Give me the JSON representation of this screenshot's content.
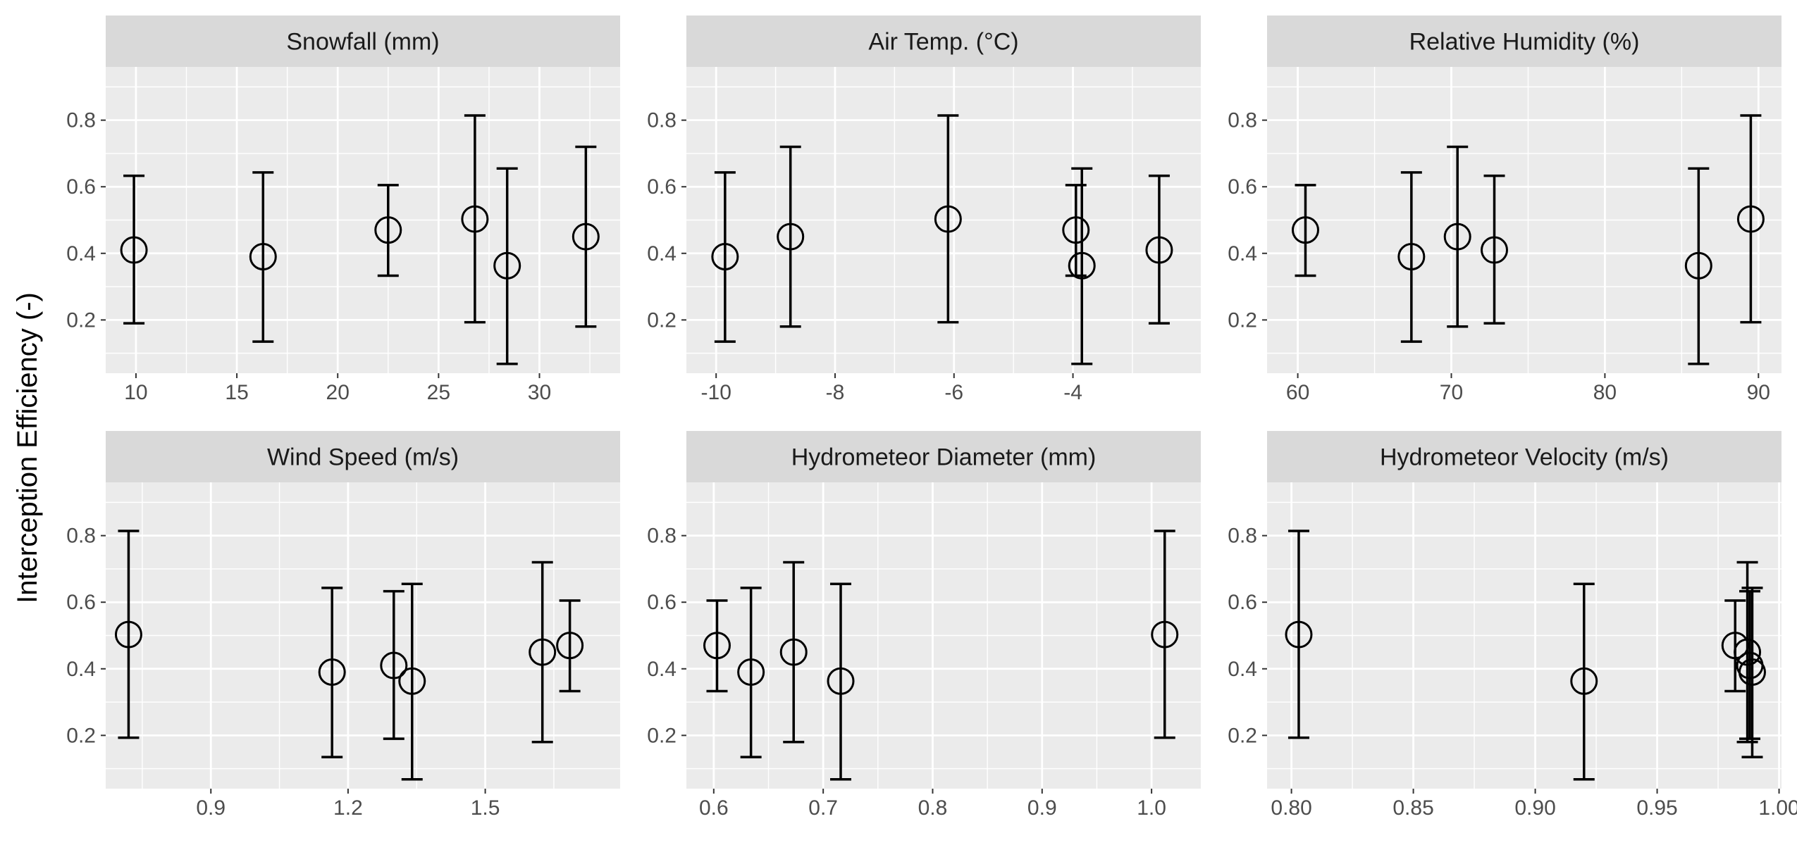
{
  "figure": {
    "ylabel": "Interception Efficiency (-)"
  },
  "colors": {
    "panel_bg": "#EBEBEB",
    "strip_bg": "#D9D9D9",
    "grid": "#FFFFFF",
    "marks": "#000000",
    "tick_text": "#4D4D4D"
  },
  "chart_data": [
    {
      "type": "scatter",
      "title": "Snowfall (mm)",
      "xlabel": "",
      "ylabel": "Interception Efficiency (-)",
      "xlim": [
        8.5,
        34.0
      ],
      "ylim": [
        0.04,
        0.96
      ],
      "xticks": [
        10,
        15,
        20,
        25,
        30
      ],
      "xtick_labels": [
        "10",
        "15",
        "20",
        "25",
        "30"
      ],
      "yticks": [
        0.2,
        0.4,
        0.6,
        0.8
      ],
      "ytick_labels": [
        "0.2",
        "0.4",
        "0.6",
        "0.8"
      ],
      "points": [
        {
          "x": 9.9,
          "y": 0.41,
          "ymin": 0.19,
          "ymax": 0.633
        },
        {
          "x": 16.3,
          "y": 0.39,
          "ymin": 0.135,
          "ymax": 0.643
        },
        {
          "x": 22.5,
          "y": 0.47,
          "ymin": 0.333,
          "ymax": 0.605
        },
        {
          "x": 26.8,
          "y": 0.503,
          "ymin": 0.193,
          "ymax": 0.814
        },
        {
          "x": 28.4,
          "y": 0.363,
          "ymin": 0.068,
          "ymax": 0.655
        },
        {
          "x": 32.3,
          "y": 0.45,
          "ymin": 0.18,
          "ymax": 0.72
        }
      ],
      "grid": true
    },
    {
      "type": "scatter",
      "title": "Air Temp. (°C)",
      "xlabel": "",
      "ylabel": "Interception Efficiency (-)",
      "xlim": [
        -10.5,
        -1.85
      ],
      "ylim": [
        0.04,
        0.96
      ],
      "xticks": [
        -10,
        -8,
        -6,
        -4
      ],
      "xtick_labels": [
        "-10",
        "-8",
        "-6",
        "-4"
      ],
      "yticks": [
        0.2,
        0.4,
        0.6,
        0.8
      ],
      "ytick_labels": [
        "0.2",
        "0.4",
        "0.6",
        "0.8"
      ],
      "points": [
        {
          "x": -9.85,
          "y": 0.39,
          "ymin": 0.135,
          "ymax": 0.643
        },
        {
          "x": -8.75,
          "y": 0.45,
          "ymin": 0.18,
          "ymax": 0.72
        },
        {
          "x": -6.1,
          "y": 0.503,
          "ymin": 0.193,
          "ymax": 0.814
        },
        {
          "x": -3.95,
          "y": 0.47,
          "ymin": 0.333,
          "ymax": 0.605
        },
        {
          "x": -3.85,
          "y": 0.363,
          "ymin": 0.068,
          "ymax": 0.655
        },
        {
          "x": -2.55,
          "y": 0.41,
          "ymin": 0.19,
          "ymax": 0.633
        }
      ],
      "grid": true
    },
    {
      "type": "scatter",
      "title": "Relative Humidity (%)",
      "xlabel": "",
      "ylabel": "Interception Efficiency (-)",
      "xlim": [
        58.0,
        91.5
      ],
      "ylim": [
        0.04,
        0.96
      ],
      "xticks": [
        60,
        70,
        80,
        90
      ],
      "xtick_labels": [
        "60",
        "70",
        "80",
        "90"
      ],
      "yticks": [
        0.2,
        0.4,
        0.6,
        0.8
      ],
      "ytick_labels": [
        "0.2",
        "0.4",
        "0.6",
        "0.8"
      ],
      "points": [
        {
          "x": 60.5,
          "y": 0.47,
          "ymin": 0.333,
          "ymax": 0.605
        },
        {
          "x": 67.4,
          "y": 0.39,
          "ymin": 0.135,
          "ymax": 0.643
        },
        {
          "x": 70.4,
          "y": 0.45,
          "ymin": 0.18,
          "ymax": 0.72
        },
        {
          "x": 72.8,
          "y": 0.41,
          "ymin": 0.19,
          "ymax": 0.633
        },
        {
          "x": 86.1,
          "y": 0.363,
          "ymin": 0.068,
          "ymax": 0.655
        },
        {
          "x": 89.5,
          "y": 0.503,
          "ymin": 0.193,
          "ymax": 0.814
        }
      ],
      "grid": true
    },
    {
      "type": "scatter",
      "title": "Wind Speed (m/s)",
      "xlabel": "",
      "ylabel": "Interception Efficiency (-)",
      "xlim": [
        0.67,
        1.795
      ],
      "ylim": [
        0.04,
        0.96
      ],
      "xticks": [
        0.9,
        1.2,
        1.5
      ],
      "xtick_labels": [
        "0.9",
        "1.2",
        "1.5"
      ],
      "yticks": [
        0.2,
        0.4,
        0.6,
        0.8
      ],
      "ytick_labels": [
        "0.2",
        "0.4",
        "0.6",
        "0.8"
      ],
      "points": [
        {
          "x": 0.72,
          "y": 0.503,
          "ymin": 0.193,
          "ymax": 0.814
        },
        {
          "x": 1.165,
          "y": 0.39,
          "ymin": 0.135,
          "ymax": 0.643
        },
        {
          "x": 1.3,
          "y": 0.41,
          "ymin": 0.19,
          "ymax": 0.633
        },
        {
          "x": 1.34,
          "y": 0.363,
          "ymin": 0.068,
          "ymax": 0.655
        },
        {
          "x": 1.625,
          "y": 0.45,
          "ymin": 0.18,
          "ymax": 0.72
        },
        {
          "x": 1.685,
          "y": 0.47,
          "ymin": 0.333,
          "ymax": 0.605
        }
      ],
      "grid": true
    },
    {
      "type": "scatter",
      "title": "Hydrometeor Diameter (mm)",
      "xlabel": "",
      "ylabel": "Interception Efficiency (-)",
      "xlim": [
        0.575,
        1.045
      ],
      "ylim": [
        0.04,
        0.96
      ],
      "xticks": [
        0.6,
        0.7,
        0.8,
        0.9,
        1.0
      ],
      "xtick_labels": [
        "0.6",
        "0.7",
        "0.8",
        "0.9",
        "1.0"
      ],
      "yticks": [
        0.2,
        0.4,
        0.6,
        0.8
      ],
      "ytick_labels": [
        "0.2",
        "0.4",
        "0.6",
        "0.8"
      ],
      "points": [
        {
          "x": 0.603,
          "y": 0.47,
          "ymin": 0.333,
          "ymax": 0.605
        },
        {
          "x": 0.634,
          "y": 0.39,
          "ymin": 0.135,
          "ymax": 0.643
        },
        {
          "x": 0.673,
          "y": 0.45,
          "ymin": 0.18,
          "ymax": 0.72
        },
        {
          "x": 0.716,
          "y": 0.363,
          "ymin": 0.068,
          "ymax": 0.655
        },
        {
          "x": 1.012,
          "y": 0.503,
          "ymin": 0.193,
          "ymax": 0.814
        }
      ],
      "grid": true
    },
    {
      "type": "scatter",
      "title": "Hydrometeor Velocity (m/s)",
      "xlabel": "",
      "ylabel": "Interception Efficiency (-)",
      "xlim": [
        0.79,
        1.001
      ],
      "ylim": [
        0.04,
        0.96
      ],
      "xticks": [
        0.8,
        0.85,
        0.9,
        0.95,
        1.0
      ],
      "xtick_labels": [
        "0.80",
        "0.85",
        "0.90",
        "0.95",
        "1.00"
      ],
      "yticks": [
        0.2,
        0.4,
        0.6,
        0.8
      ],
      "ytick_labels": [
        "0.2",
        "0.4",
        "0.6",
        "0.8"
      ],
      "points": [
        {
          "x": 0.803,
          "y": 0.503,
          "ymin": 0.193,
          "ymax": 0.814
        },
        {
          "x": 0.92,
          "y": 0.363,
          "ymin": 0.068,
          "ymax": 0.655
        },
        {
          "x": 0.982,
          "y": 0.47,
          "ymin": 0.333,
          "ymax": 0.605
        },
        {
          "x": 0.987,
          "y": 0.45,
          "ymin": 0.18,
          "ymax": 0.72
        },
        {
          "x": 0.988,
          "y": 0.41,
          "ymin": 0.19,
          "ymax": 0.633
        },
        {
          "x": 0.989,
          "y": 0.39,
          "ymin": 0.135,
          "ymax": 0.643
        }
      ],
      "grid": true
    }
  ]
}
